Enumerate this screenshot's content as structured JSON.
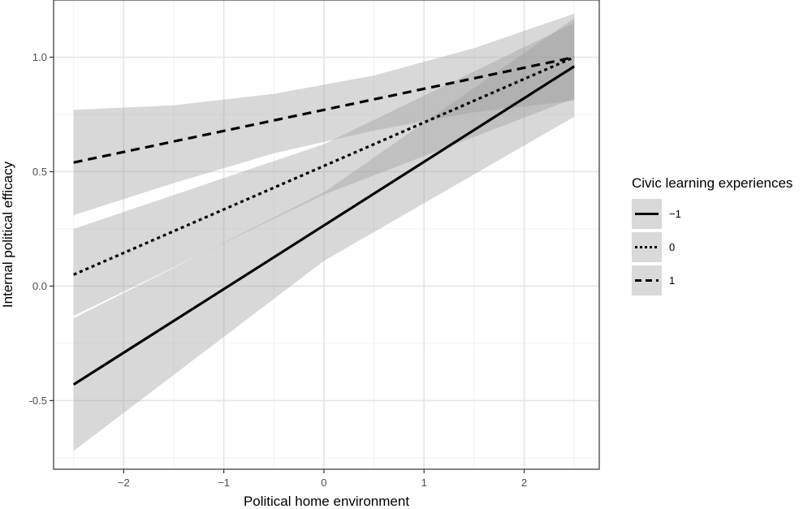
{
  "chart_data": {
    "type": "line",
    "title": "",
    "xlabel": "Political home environment",
    "ylabel": "Internal political efficacy",
    "xlim": [
      -2.7,
      2.75
    ],
    "ylim": [
      -0.8,
      1.25
    ],
    "x_ticks": [
      -2,
      -1,
      0,
      1,
      2
    ],
    "x_tick_labels": [
      "−2",
      "−1",
      "0",
      "1",
      "2"
    ],
    "y_ticks": [
      -0.5,
      0.0,
      0.5,
      1.0
    ],
    "y_tick_labels": [
      "-0.5",
      "0.0",
      "0.5",
      "1.0"
    ],
    "grid": true,
    "legend": {
      "title": "Civic learning experiences",
      "placement": "right"
    },
    "series": [
      {
        "name": "−1",
        "line_style": "solid",
        "x": [
          -2.5,
          2.5
        ],
        "y": [
          -0.43,
          0.96
        ],
        "band_lower": [
          [
            -2.5,
            -0.72
          ],
          [
            0.0,
            0.11
          ],
          [
            2.5,
            0.74
          ]
        ],
        "band_upper": [
          [
            -2.5,
            -0.14
          ],
          [
            0.0,
            0.41
          ],
          [
            2.5,
            1.17
          ]
        ]
      },
      {
        "name": "0",
        "line_style": "dotted",
        "x": [
          -2.5,
          2.5
        ],
        "y": [
          0.05,
          1.0
        ],
        "band_lower": [
          [
            -2.5,
            -0.13
          ],
          [
            0.0,
            0.4
          ],
          [
            2.5,
            0.82
          ]
        ],
        "band_upper": [
          [
            -2.5,
            0.25
          ],
          [
            0.0,
            0.62
          ],
          [
            2.5,
            1.15
          ]
        ]
      },
      {
        "name": "1",
        "line_style": "dashed",
        "x": [
          -2.5,
          2.5
        ],
        "y": [
          0.54,
          1.0
        ],
        "band_lower": [
          [
            -2.5,
            0.31
          ],
          [
            -1.5,
            0.45
          ],
          [
            -0.5,
            0.58
          ],
          [
            0.5,
            0.68
          ],
          [
            1.5,
            0.76
          ],
          [
            2.5,
            0.81
          ]
        ],
        "band_upper": [
          [
            -2.5,
            0.77
          ],
          [
            -1.5,
            0.79
          ],
          [
            -0.5,
            0.84
          ],
          [
            0.5,
            0.92
          ],
          [
            1.5,
            1.04
          ],
          [
            2.5,
            1.19
          ]
        ]
      }
    ]
  }
}
